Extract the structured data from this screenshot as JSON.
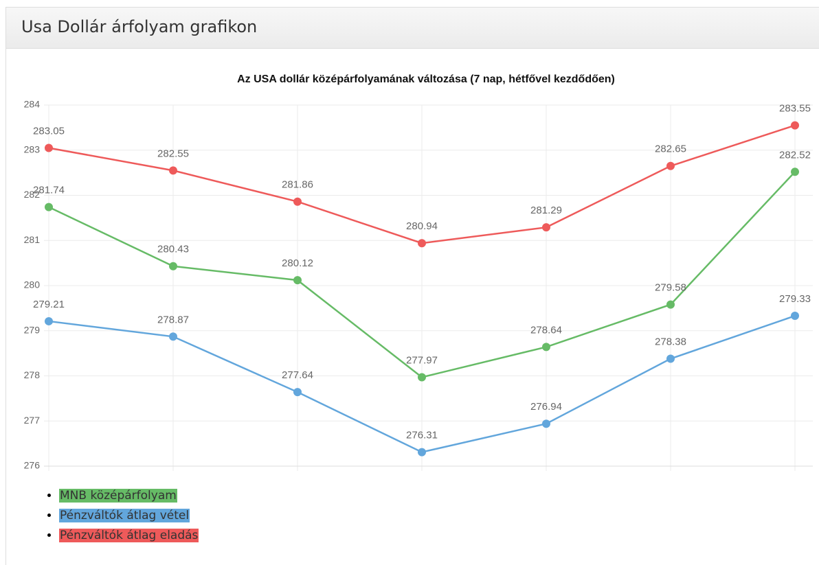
{
  "header": {
    "title": "Usa Dollár árfolyam grafikon"
  },
  "chart_data": {
    "type": "line",
    "title": "Az USA dollár középárfolyamának változása (7 nap, hétfővel kezdődően)",
    "categories": [
      null,
      null,
      null,
      null,
      null,
      null,
      null
    ],
    "series": [
      {
        "name": "MNB középárfolyam",
        "color": "#66bb66",
        "values": [
          281.74,
          280.43,
          280.12,
          277.97,
          278.64,
          279.58,
          282.52
        ]
      },
      {
        "name": "Pénzváltók átlag vétel",
        "color": "#62a6dc",
        "values": [
          279.21,
          278.87,
          277.64,
          276.31,
          276.94,
          278.38,
          279.33
        ]
      },
      {
        "name": "Pénzváltók átlag eladás",
        "color": "#ee5a5a",
        "values": [
          283.05,
          282.55,
          281.86,
          280.94,
          281.29,
          282.65,
          283.55
        ]
      }
    ],
    "ylim": [
      276,
      284
    ],
    "yticks": [
      276,
      277,
      278,
      279,
      280,
      281,
      282,
      283,
      284
    ],
    "grid": true
  }
}
